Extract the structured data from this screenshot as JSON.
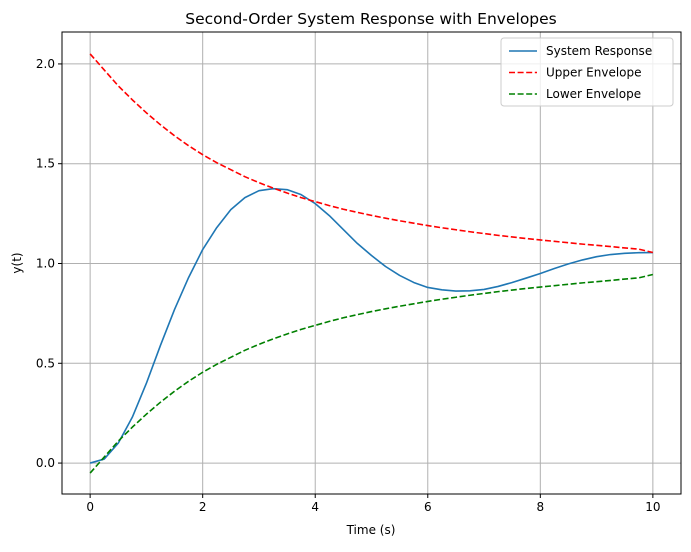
{
  "chart_data": {
    "type": "line",
    "title": "Second-Order System Response with Envelopes",
    "xlabel": "Time (s)",
    "ylabel": "y(t)",
    "xlim": [
      -0.5,
      10.5
    ],
    "ylim": [
      -0.155,
      2.16
    ],
    "xticks": [
      0,
      2,
      4,
      6,
      8,
      10
    ],
    "xtick_labels": [
      "0",
      "2",
      "4",
      "6",
      "8",
      "10"
    ],
    "yticks": [
      0.0,
      0.5,
      1.0,
      1.5,
      2.0
    ],
    "ytick_labels": [
      "0.0",
      "0.5",
      "1.0",
      "1.5",
      "2.0"
    ],
    "grid": true,
    "legend_position": "top-right",
    "x": [
      0,
      0.25,
      0.5,
      0.75,
      1.0,
      1.25,
      1.5,
      1.75,
      2.0,
      2.25,
      2.5,
      2.75,
      3.0,
      3.25,
      3.5,
      3.75,
      4.0,
      4.25,
      4.5,
      4.75,
      5.0,
      5.25,
      5.5,
      5.75,
      6.0,
      6.25,
      6.5,
      6.75,
      7.0,
      7.25,
      7.5,
      7.75,
      8.0,
      8.25,
      8.5,
      8.75,
      9.0,
      9.25,
      9.5,
      9.75,
      10.0
    ],
    "series": [
      {
        "name": "System Response",
        "color": "#1f77b4",
        "dash": "solid",
        "values": [
          0.0,
          0.02,
          0.1,
          0.23,
          0.4,
          0.59,
          0.77,
          0.93,
          1.07,
          1.18,
          1.27,
          1.33,
          1.365,
          1.375,
          1.37,
          1.345,
          1.3,
          1.24,
          1.17,
          1.1,
          1.04,
          0.985,
          0.94,
          0.905,
          0.88,
          0.868,
          0.862,
          0.863,
          0.87,
          0.885,
          0.905,
          0.927,
          0.95,
          0.975,
          0.998,
          1.018,
          1.034,
          1.045,
          1.051,
          1.054,
          1.055
        ]
      },
      {
        "name": "Upper Envelope",
        "color": "#ff0000",
        "dash": "dashed",
        "values": [
          2.05,
          1.97,
          1.89,
          1.82,
          1.755,
          1.695,
          1.64,
          1.59,
          1.545,
          1.505,
          1.47,
          1.435,
          1.405,
          1.378,
          1.353,
          1.33,
          1.31,
          1.29,
          1.272,
          1.256,
          1.241,
          1.227,
          1.214,
          1.202,
          1.19,
          1.179,
          1.169,
          1.159,
          1.15,
          1.141,
          1.133,
          1.125,
          1.118,
          1.111,
          1.104,
          1.097,
          1.091,
          1.085,
          1.078,
          1.072,
          1.055
        ]
      },
      {
        "name": "Lower Envelope",
        "color": "#008000",
        "dash": "dashed",
        "values": [
          -0.05,
          0.03,
          0.11,
          0.18,
          0.245,
          0.305,
          0.36,
          0.41,
          0.455,
          0.495,
          0.53,
          0.565,
          0.595,
          0.622,
          0.647,
          0.67,
          0.69,
          0.71,
          0.728,
          0.744,
          0.759,
          0.773,
          0.786,
          0.798,
          0.81,
          0.821,
          0.831,
          0.841,
          0.85,
          0.859,
          0.867,
          0.875,
          0.882,
          0.889,
          0.896,
          0.903,
          0.909,
          0.915,
          0.922,
          0.928,
          0.945
        ]
      }
    ]
  }
}
